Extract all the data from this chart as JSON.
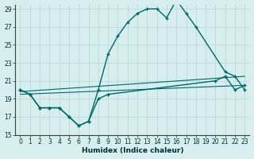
{
  "xlabel": "Humidex (Indice chaleur)",
  "xlim": [
    -0.5,
    23.5
  ],
  "ylim": [
    15,
    29.5
  ],
  "xticks": [
    0,
    1,
    2,
    3,
    4,
    5,
    6,
    7,
    8,
    9,
    10,
    11,
    12,
    13,
    14,
    15,
    16,
    17,
    18,
    19,
    20,
    21,
    22,
    23
  ],
  "yticks": [
    15,
    17,
    19,
    21,
    23,
    25,
    27,
    29
  ],
  "bg_color": "#d6eeee",
  "grid_color": "#c0dcdc",
  "line_color": "#006868",
  "line1_x": [
    0,
    1,
    2,
    3,
    4,
    5,
    6,
    7,
    8,
    9,
    10,
    11,
    12,
    13,
    14,
    15,
    16,
    17,
    18,
    21,
    22,
    23
  ],
  "line1_y": [
    20,
    19.5,
    18,
    18,
    18,
    17,
    16,
    16.5,
    20,
    24,
    26,
    27.5,
    28.5,
    29,
    29,
    28,
    30,
    28.5,
    27,
    22,
    21.5,
    20
  ],
  "line2_x": [
    0,
    1,
    2,
    3,
    4,
    5,
    6,
    7,
    8,
    9,
    20,
    21,
    22,
    23
  ],
  "line2_y": [
    20,
    19.5,
    18,
    18,
    18,
    17,
    16,
    16.5,
    19,
    19.5,
    21,
    21.5,
    20,
    20.5
  ],
  "line3_x": [
    0,
    23
  ],
  "line3_y": [
    19.5,
    20.5
  ],
  "line4_x": [
    0,
    23
  ],
  "line4_y": [
    19.8,
    21.5
  ]
}
